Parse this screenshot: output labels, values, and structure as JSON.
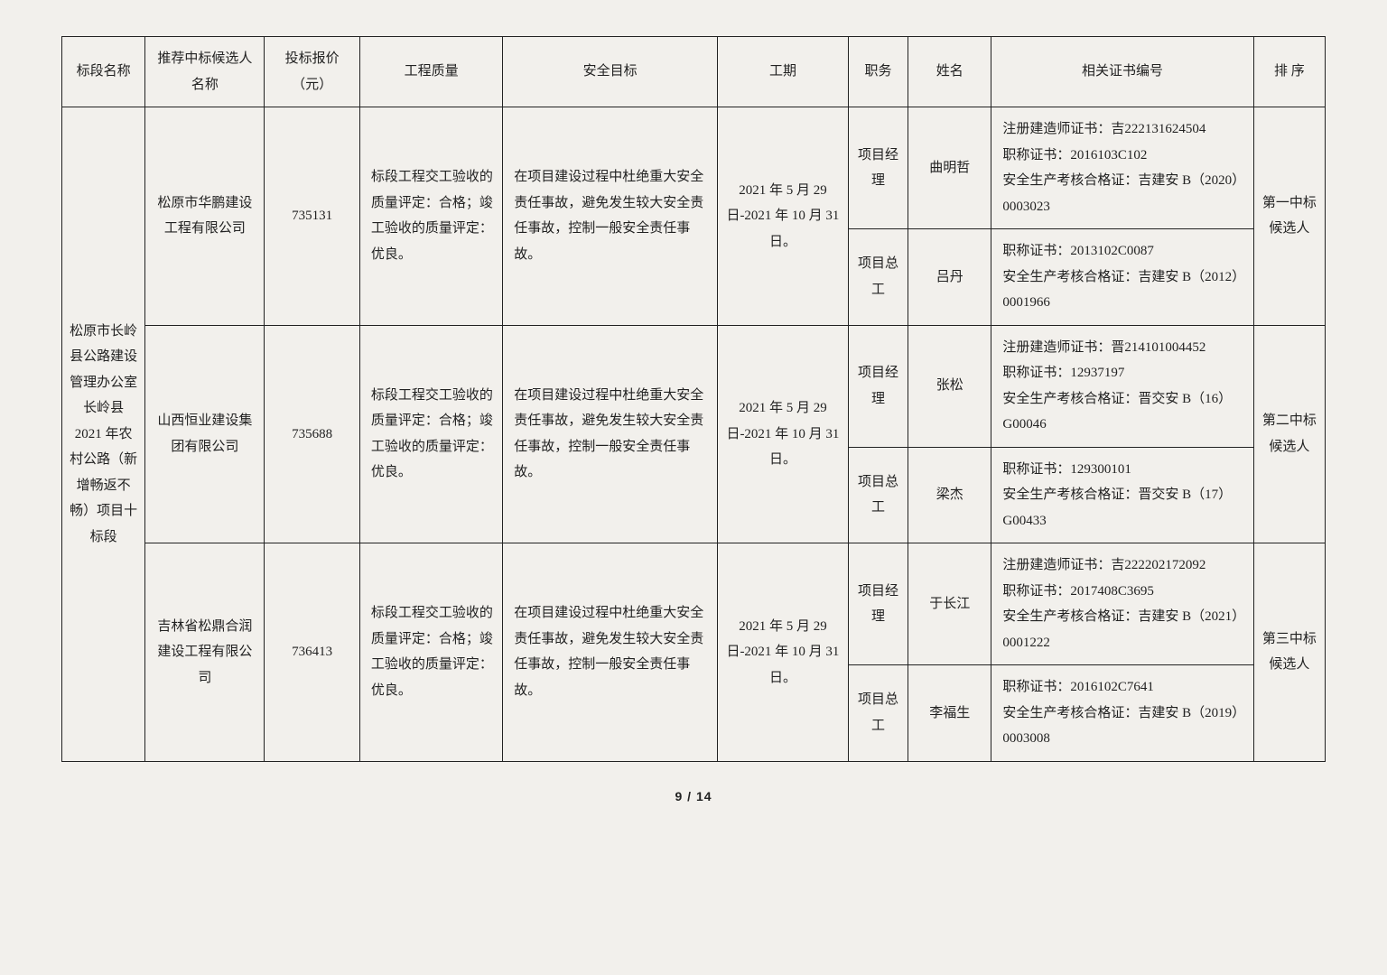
{
  "headers": {
    "section": "标段名称",
    "candidate": "推荐中标候选人名称",
    "price": "投标报价（元）",
    "quality": "工程质量",
    "safety": "安全目标",
    "period": "工期",
    "role": "职务",
    "name": "姓名",
    "cert": "相关证书编号",
    "rank": "排 序"
  },
  "section_name": "松原市长岭县公路建设管理办公室长岭县 2021 年农村公路（新增畅返不畅）项目十标段",
  "bidders": [
    {
      "candidate": "松原市华鹏建设工程有限公司",
      "price": "735131",
      "quality": "标段工程交工验收的质量评定：合格；竣工验收的质量评定：优良。",
      "safety": "在项目建设过程中杜绝重大安全责任事故，避免发生较大安全责任事故，控制一般安全责任事故。",
      "period": "2021 年 5 月 29 日-2021 年 10 月 31 日。",
      "rank": "第一中标候选人",
      "persons": [
        {
          "role": "项目经理",
          "name": "曲明哲",
          "cert": "注册建造师证书：吉222131624504\n职称证书：2016103C102\n安全生产考核合格证：吉建安 B（2020）0003023"
        },
        {
          "role": "项目总工",
          "name": "吕丹",
          "cert": "职称证书：2013102C0087\n安全生产考核合格证：吉建安 B（2012）0001966"
        }
      ]
    },
    {
      "candidate": "山西恒业建设集团有限公司",
      "price": "735688",
      "quality": "标段工程交工验收的质量评定：合格；竣工验收的质量评定：优良。",
      "safety": "在项目建设过程中杜绝重大安全责任事故，避免发生较大安全责任事故，控制一般安全责任事故。",
      "period": "2021 年 5 月 29 日-2021 年 10 月 31 日。",
      "rank": "第二中标候选人",
      "persons": [
        {
          "role": "项目经理",
          "name": "张松",
          "cert": "注册建造师证书：晋214101004452\n职称证书：12937197\n安全生产考核合格证：晋交安 B（16）G00046"
        },
        {
          "role": "项目总工",
          "name": "梁杰",
          "cert": "职称证书：129300101\n安全生产考核合格证：晋交安 B（17）G00433"
        }
      ]
    },
    {
      "candidate": "吉林省松鼎合润建设工程有限公司",
      "price": "736413",
      "quality": "标段工程交工验收的质量评定：合格；竣工验收的质量评定：优良。",
      "safety": "在项目建设过程中杜绝重大安全责任事故，避免发生较大安全责任事故，控制一般安全责任事故。",
      "period": "2021 年 5 月 29 日-2021 年 10 月 31 日。",
      "rank": "第三中标候选人",
      "persons": [
        {
          "role": "项目经理",
          "name": "于长江",
          "cert": "注册建造师证书：吉222202172092\n职称证书：2017408C3695\n安全生产考核合格证：吉建安 B（2021）0001222"
        },
        {
          "role": "项目总工",
          "name": "李福生",
          "cert": "职称证书：2016102C7641\n安全生产考核合格证：吉建安 B（2019）0003008"
        }
      ]
    }
  ],
  "footer": "9 / 14"
}
